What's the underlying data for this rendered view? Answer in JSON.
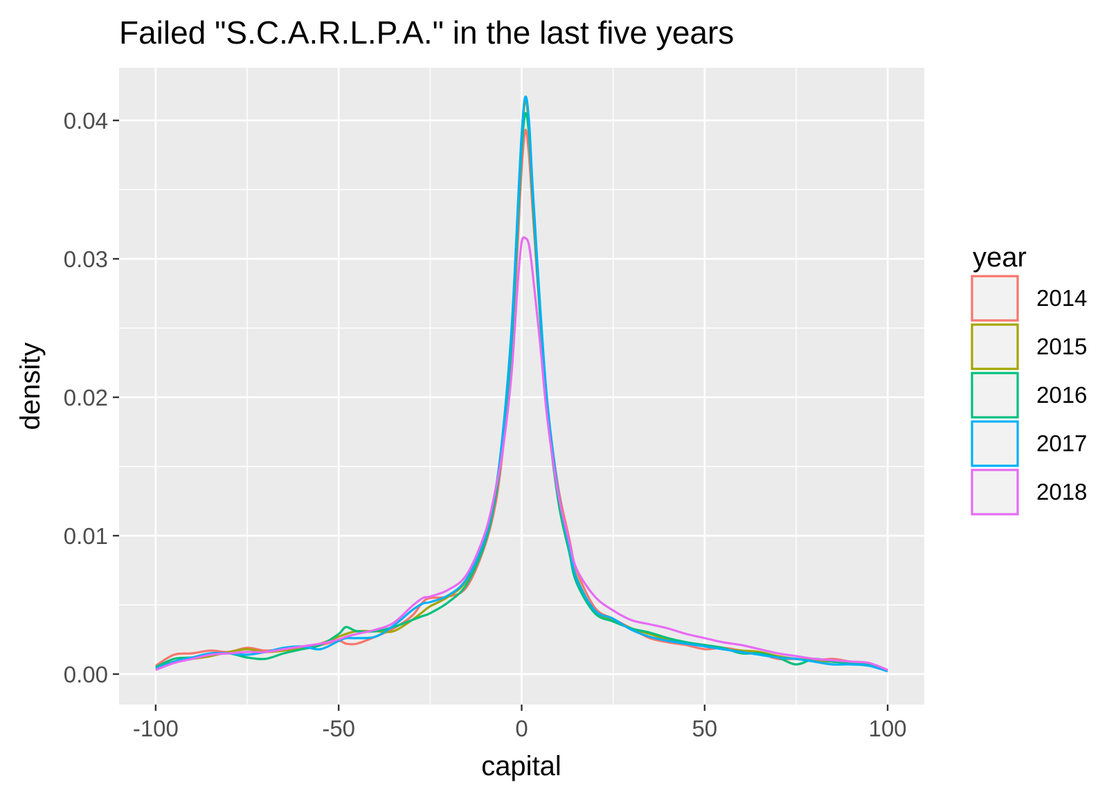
{
  "chart_data": {
    "type": "line",
    "title": "Failed \"S.C.A.R.L.P.A.\" in the last five years",
    "xlabel": "capital",
    "ylabel": "density",
    "xlim": [
      -110,
      110
    ],
    "ylim": [
      -0.0022,
      0.0438
    ],
    "x_ticks": [
      -100,
      -50,
      0,
      50,
      100
    ],
    "x_tick_labels": [
      "-100",
      "-50",
      "0",
      "50",
      "100"
    ],
    "y_ticks": [
      0.0,
      0.01,
      0.02,
      0.03,
      0.04
    ],
    "y_tick_labels": [
      "0.00",
      "0.01",
      "0.02",
      "0.03",
      "0.04"
    ],
    "grid": true,
    "legend": {
      "title": "year",
      "position": "right"
    },
    "x": [
      -100,
      -95,
      -90,
      -85,
      -80,
      -75,
      -70,
      -65,
      -60,
      -55,
      -50,
      -48,
      -45,
      -40,
      -35,
      -30,
      -27,
      -25,
      -20,
      -15,
      -10,
      -7,
      -5,
      -3,
      -2,
      -1,
      0,
      1,
      2,
      3,
      5,
      7,
      10,
      13,
      15,
      20,
      25,
      30,
      35,
      40,
      45,
      50,
      55,
      60,
      65,
      70,
      75,
      80,
      85,
      90,
      95,
      100
    ],
    "series": [
      {
        "name": "2014",
        "color": "#F8766D",
        "values": [
          0.0006,
          0.0014,
          0.0015,
          0.0017,
          0.0016,
          0.0019,
          0.0017,
          0.0018,
          0.0019,
          0.0021,
          0.0024,
          0.0022,
          0.0022,
          0.0027,
          0.0033,
          0.0042,
          0.0052,
          0.0055,
          0.0056,
          0.0063,
          0.0093,
          0.0125,
          0.0165,
          0.022,
          0.0265,
          0.0315,
          0.0365,
          0.0393,
          0.0375,
          0.0335,
          0.026,
          0.0195,
          0.0135,
          0.0098,
          0.0075,
          0.0048,
          0.004,
          0.0033,
          0.0026,
          0.0023,
          0.0021,
          0.0018,
          0.0019,
          0.0017,
          0.0015,
          0.0011,
          0.0011,
          0.001,
          0.0011,
          0.0009,
          0.0008,
          0.0002
        ]
      },
      {
        "name": "2015",
        "color": "#A3A500",
        "values": [
          0.0005,
          0.0009,
          0.0011,
          0.0013,
          0.0016,
          0.0018,
          0.0016,
          0.0017,
          0.0019,
          0.0022,
          0.0027,
          0.0029,
          0.0031,
          0.0031,
          0.0031,
          0.0039,
          0.0045,
          0.0049,
          0.0056,
          0.0068,
          0.01,
          0.0135,
          0.0175,
          0.0235,
          0.028,
          0.0335,
          0.0385,
          0.0415,
          0.0395,
          0.0348,
          0.0265,
          0.0195,
          0.013,
          0.0092,
          0.007,
          0.0045,
          0.0039,
          0.0033,
          0.0029,
          0.0025,
          0.0022,
          0.0021,
          0.0018,
          0.0017,
          0.0016,
          0.0013,
          0.0011,
          0.001,
          0.0009,
          0.0008,
          0.0007,
          0.0003
        ]
      },
      {
        "name": "2016",
        "color": "#00BF7D",
        "values": [
          0.0005,
          0.0011,
          0.0012,
          0.0014,
          0.0015,
          0.0012,
          0.0011,
          0.0015,
          0.0018,
          0.0021,
          0.0029,
          0.0034,
          0.0031,
          0.0031,
          0.0034,
          0.0039,
          0.0042,
          0.0044,
          0.0052,
          0.0065,
          0.0095,
          0.013,
          0.017,
          0.023,
          0.0275,
          0.033,
          0.038,
          0.0405,
          0.039,
          0.0345,
          0.026,
          0.019,
          0.0125,
          0.0088,
          0.0066,
          0.0044,
          0.0038,
          0.0033,
          0.003,
          0.0026,
          0.0023,
          0.0021,
          0.0019,
          0.0015,
          0.0015,
          0.0012,
          0.0007,
          0.0011,
          0.0009,
          0.0008,
          0.0007,
          0.0003
        ]
      },
      {
        "name": "2017",
        "color": "#00B0F6",
        "values": [
          0.0004,
          0.0009,
          0.0012,
          0.0015,
          0.0015,
          0.0014,
          0.0016,
          0.0019,
          0.002,
          0.0018,
          0.0024,
          0.0026,
          0.0026,
          0.0027,
          0.0035,
          0.0046,
          0.0051,
          0.0052,
          0.0057,
          0.0069,
          0.0099,
          0.0135,
          0.0178,
          0.024,
          0.0285,
          0.034,
          0.039,
          0.0417,
          0.04,
          0.0352,
          0.0268,
          0.0197,
          0.0132,
          0.0092,
          0.0069,
          0.0046,
          0.004,
          0.0032,
          0.0027,
          0.0024,
          0.0022,
          0.002,
          0.0018,
          0.0016,
          0.0014,
          0.0012,
          0.0011,
          0.0009,
          0.0007,
          0.0007,
          0.0006,
          0.0002
        ]
      },
      {
        "name": "2018",
        "color": "#E76BF3",
        "values": [
          0.0003,
          0.0008,
          0.0011,
          0.0014,
          0.0015,
          0.0016,
          0.0016,
          0.0018,
          0.002,
          0.0022,
          0.0025,
          0.0027,
          0.0029,
          0.0032,
          0.0037,
          0.0049,
          0.0055,
          0.0056,
          0.0061,
          0.0072,
          0.0102,
          0.0135,
          0.0165,
          0.021,
          0.0245,
          0.0285,
          0.0312,
          0.0315,
          0.031,
          0.029,
          0.024,
          0.0185,
          0.013,
          0.0096,
          0.0076,
          0.0056,
          0.0046,
          0.0039,
          0.0036,
          0.0033,
          0.0029,
          0.0026,
          0.0023,
          0.0021,
          0.0018,
          0.0015,
          0.0013,
          0.0011,
          0.001,
          0.0009,
          0.0008,
          0.0003
        ]
      }
    ]
  }
}
